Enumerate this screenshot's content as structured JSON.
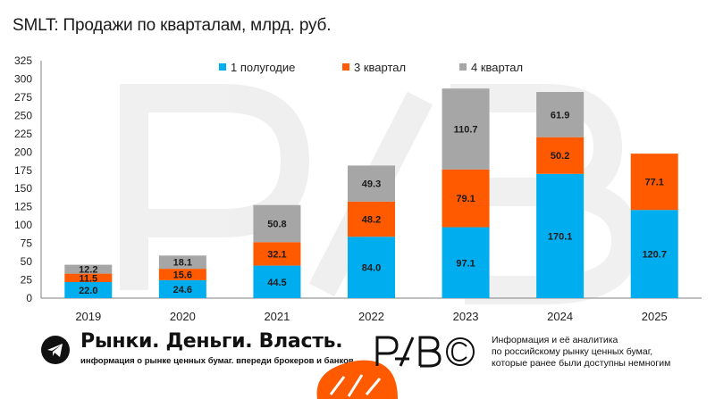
{
  "chart_data": {
    "type": "bar",
    "stacked": true,
    "title": "SMLT: Продажи по кварталам, млрд. руб.",
    "categories": [
      "2019",
      "2020",
      "2021",
      "2022",
      "2023",
      "2024",
      "2025"
    ],
    "series": [
      {
        "name": "1 полугодие",
        "color": "#00AEEF",
        "values": [
          22.0,
          24.6,
          44.5,
          84.0,
          97.1,
          170.1,
          120.7
        ]
      },
      {
        "name": "3 квартал",
        "color": "#FF5A00",
        "values": [
          11.5,
          15.6,
          32.1,
          48.2,
          79.1,
          50.2,
          77.1
        ]
      },
      {
        "name": "4 квартал",
        "color": "#A6A6A6",
        "values": [
          12.2,
          18.1,
          50.8,
          49.3,
          110.7,
          61.9,
          null
        ]
      }
    ],
    "data_labels": [
      [
        "22.0",
        "24.6",
        "44.5",
        "84.0",
        "97.1",
        "170.1",
        "120.7"
      ],
      [
        "11.5",
        "15.6",
        "32.1",
        "48.2",
        "79.1",
        "50.2",
        "77.1"
      ],
      [
        "12.2",
        "18.1",
        "50.8",
        "49.3",
        "110.7",
        "61.9",
        ""
      ]
    ],
    "ylim": [
      0,
      325
    ],
    "yticks": [
      0,
      25,
      50,
      75,
      100,
      125,
      150,
      175,
      200,
      225,
      250,
      275,
      300,
      325
    ],
    "ytick_labels": [
      "0",
      "25",
      "50",
      "75",
      "100",
      "125",
      "150",
      "175",
      "200",
      "225",
      "250",
      "275",
      "300",
      "325"
    ],
    "grid": false,
    "legend_position": "top"
  },
  "footer": {
    "icon": "telegram-icon",
    "brand_title": "Рынки. Деньги. Власть.",
    "brand_subtitle": "информация о рынке ценных бумаг. впереди брокеров и банков.",
    "logo_text": "РДВ",
    "promo_lines": [
      "Информация и её аналитика",
      "по российскому рынку ценных бумаг,",
      "которые ранее были доступны немногим"
    ]
  },
  "colors": {
    "accent": "#FF5A00",
    "blue": "#00AEEF",
    "gray": "#A6A6A6",
    "text": "#1a1a1a"
  }
}
